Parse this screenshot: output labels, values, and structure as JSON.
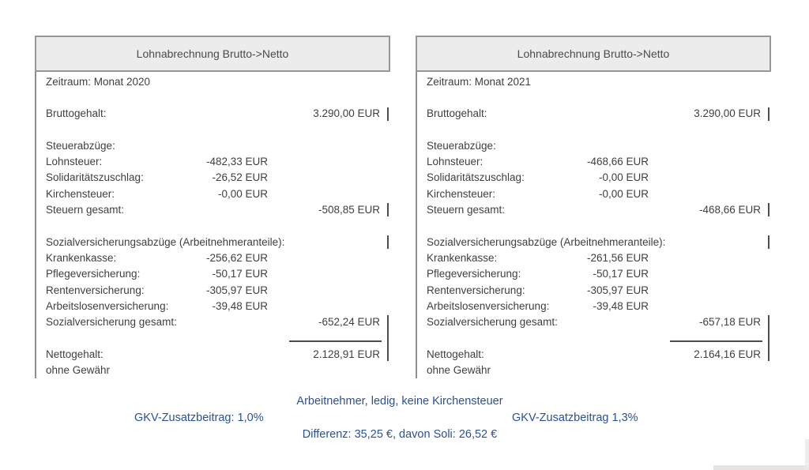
{
  "panels": [
    {
      "title": "Lohnabrechnung Brutto->Netto",
      "period": "Zeitraum: Monat 2020",
      "rows": [
        {
          "label": "Bruttogehalt:",
          "total": "3.290,00 EUR"
        },
        {
          "label": "Steuerabzüge:"
        },
        {
          "label": "Lohnsteuer:",
          "value": "-482,33 EUR"
        },
        {
          "label": "Solidaritätszuschlag:",
          "value": "-26,52 EUR"
        },
        {
          "label": "Kirchensteuer:",
          "value": "-0,00 EUR"
        },
        {
          "label": "Steuern gesamt:",
          "total": "-508,85 EUR"
        },
        {
          "label": "Sozialversicherungsabzüge (Arbeitnehmeranteile):"
        },
        {
          "label": "Krankenkasse:",
          "value": "-256,62 EUR"
        },
        {
          "label": "Pflegeversicherung:",
          "value": "-50,17 EUR"
        },
        {
          "label": "Rentenversicherung:",
          "value": "-305,97 EUR"
        },
        {
          "label": "Arbeitslosenversicherung:",
          "value": "-39,48 EUR"
        },
        {
          "label": "Sozialversicherung gesamt:",
          "total": "-652,24 EUR"
        },
        {
          "label": "Nettogehalt:",
          "total": "2.128,91 EUR"
        },
        {
          "label": "ohne Gewähr"
        }
      ]
    },
    {
      "title": "Lohnabrechnung Brutto->Netto",
      "period": "Zeitraum: Monat 2021",
      "rows": [
        {
          "label": "Bruttogehalt:",
          "total": "3.290,00 EUR"
        },
        {
          "label": "Steuerabzüge:"
        },
        {
          "label": "Lohnsteuer:",
          "value": "-468,66 EUR"
        },
        {
          "label": "Solidaritätszuschlag:",
          "value": "-0,00 EUR"
        },
        {
          "label": "Kirchensteuer:",
          "value": "-0,00 EUR"
        },
        {
          "label": "Steuern gesamt:",
          "total": "-468,66 EUR"
        },
        {
          "label": "Sozialversicherungsabzüge (Arbeitnehmeranteile):"
        },
        {
          "label": "Krankenkasse:",
          "value": "-261,56 EUR"
        },
        {
          "label": "Pflegeversicherung:",
          "value": "-50,17 EUR"
        },
        {
          "label": "Rentenversicherung:",
          "value": "-305,97 EUR"
        },
        {
          "label": "Arbeitslosenversicherung:",
          "value": "-39,48 EUR"
        },
        {
          "label": "Sozialversicherung gesamt:",
          "total": "-657,18 EUR"
        },
        {
          "label": "Nettogehalt:",
          "total": "2.164,16 EUR"
        },
        {
          "label": "ohne Gewähr"
        }
      ]
    }
  ],
  "footer": {
    "line1": "Arbeitnehmer, ledig, keine Kirchensteuer",
    "gkv_left": "GKV-Zusatzbeitrag: 1,0%",
    "gkv_right": "GKV-Zusatzbeitrag 1,3%",
    "line3": "Differenz: 35,25 €, davon Soli: 26,52 €",
    "accent_blue": "#2a5194"
  }
}
